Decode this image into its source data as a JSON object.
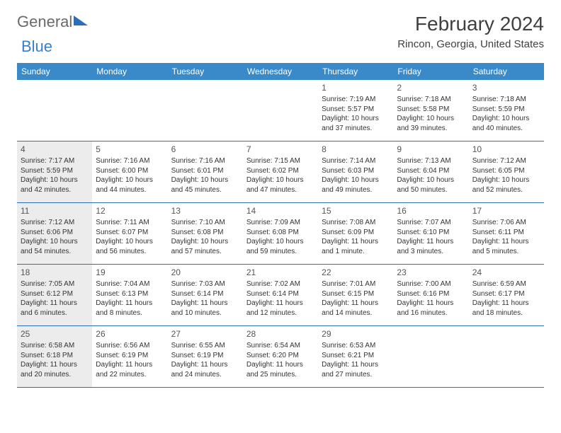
{
  "logo": {
    "word1": "General",
    "word2": "Blue"
  },
  "header": {
    "month_title": "February 2024",
    "location": "Rincon, Georgia, United States"
  },
  "colors": {
    "header_bar": "#3a8ac9",
    "rule": "#2d6fb5",
    "shade": "#ececec",
    "text": "#333333",
    "title": "#404040"
  },
  "day_names": [
    "Sunday",
    "Monday",
    "Tuesday",
    "Wednesday",
    "Thursday",
    "Friday",
    "Saturday"
  ],
  "weeks": [
    [
      {
        "blank": true
      },
      {
        "blank": true
      },
      {
        "blank": true
      },
      {
        "blank": true
      },
      {
        "day": "1",
        "sunrise": "Sunrise: 7:19 AM",
        "sunset": "Sunset: 5:57 PM",
        "dl1": "Daylight: 10 hours",
        "dl2": "and 37 minutes."
      },
      {
        "day": "2",
        "sunrise": "Sunrise: 7:18 AM",
        "sunset": "Sunset: 5:58 PM",
        "dl1": "Daylight: 10 hours",
        "dl2": "and 39 minutes."
      },
      {
        "day": "3",
        "sunrise": "Sunrise: 7:18 AM",
        "sunset": "Sunset: 5:59 PM",
        "dl1": "Daylight: 10 hours",
        "dl2": "and 40 minutes."
      }
    ],
    [
      {
        "day": "4",
        "shaded": true,
        "sunrise": "Sunrise: 7:17 AM",
        "sunset": "Sunset: 5:59 PM",
        "dl1": "Daylight: 10 hours",
        "dl2": "and 42 minutes."
      },
      {
        "day": "5",
        "sunrise": "Sunrise: 7:16 AM",
        "sunset": "Sunset: 6:00 PM",
        "dl1": "Daylight: 10 hours",
        "dl2": "and 44 minutes."
      },
      {
        "day": "6",
        "sunrise": "Sunrise: 7:16 AM",
        "sunset": "Sunset: 6:01 PM",
        "dl1": "Daylight: 10 hours",
        "dl2": "and 45 minutes."
      },
      {
        "day": "7",
        "sunrise": "Sunrise: 7:15 AM",
        "sunset": "Sunset: 6:02 PM",
        "dl1": "Daylight: 10 hours",
        "dl2": "and 47 minutes."
      },
      {
        "day": "8",
        "sunrise": "Sunrise: 7:14 AM",
        "sunset": "Sunset: 6:03 PM",
        "dl1": "Daylight: 10 hours",
        "dl2": "and 49 minutes."
      },
      {
        "day": "9",
        "sunrise": "Sunrise: 7:13 AM",
        "sunset": "Sunset: 6:04 PM",
        "dl1": "Daylight: 10 hours",
        "dl2": "and 50 minutes."
      },
      {
        "day": "10",
        "sunrise": "Sunrise: 7:12 AM",
        "sunset": "Sunset: 6:05 PM",
        "dl1": "Daylight: 10 hours",
        "dl2": "and 52 minutes."
      }
    ],
    [
      {
        "day": "11",
        "shaded": true,
        "sunrise": "Sunrise: 7:12 AM",
        "sunset": "Sunset: 6:06 PM",
        "dl1": "Daylight: 10 hours",
        "dl2": "and 54 minutes."
      },
      {
        "day": "12",
        "sunrise": "Sunrise: 7:11 AM",
        "sunset": "Sunset: 6:07 PM",
        "dl1": "Daylight: 10 hours",
        "dl2": "and 56 minutes."
      },
      {
        "day": "13",
        "sunrise": "Sunrise: 7:10 AM",
        "sunset": "Sunset: 6:08 PM",
        "dl1": "Daylight: 10 hours",
        "dl2": "and 57 minutes."
      },
      {
        "day": "14",
        "sunrise": "Sunrise: 7:09 AM",
        "sunset": "Sunset: 6:08 PM",
        "dl1": "Daylight: 10 hours",
        "dl2": "and 59 minutes."
      },
      {
        "day": "15",
        "sunrise": "Sunrise: 7:08 AM",
        "sunset": "Sunset: 6:09 PM",
        "dl1": "Daylight: 11 hours",
        "dl2": "and 1 minute."
      },
      {
        "day": "16",
        "sunrise": "Sunrise: 7:07 AM",
        "sunset": "Sunset: 6:10 PM",
        "dl1": "Daylight: 11 hours",
        "dl2": "and 3 minutes."
      },
      {
        "day": "17",
        "sunrise": "Sunrise: 7:06 AM",
        "sunset": "Sunset: 6:11 PM",
        "dl1": "Daylight: 11 hours",
        "dl2": "and 5 minutes."
      }
    ],
    [
      {
        "day": "18",
        "shaded": true,
        "sunrise": "Sunrise: 7:05 AM",
        "sunset": "Sunset: 6:12 PM",
        "dl1": "Daylight: 11 hours",
        "dl2": "and 6 minutes."
      },
      {
        "day": "19",
        "sunrise": "Sunrise: 7:04 AM",
        "sunset": "Sunset: 6:13 PM",
        "dl1": "Daylight: 11 hours",
        "dl2": "and 8 minutes."
      },
      {
        "day": "20",
        "sunrise": "Sunrise: 7:03 AM",
        "sunset": "Sunset: 6:14 PM",
        "dl1": "Daylight: 11 hours",
        "dl2": "and 10 minutes."
      },
      {
        "day": "21",
        "sunrise": "Sunrise: 7:02 AM",
        "sunset": "Sunset: 6:14 PM",
        "dl1": "Daylight: 11 hours",
        "dl2": "and 12 minutes."
      },
      {
        "day": "22",
        "sunrise": "Sunrise: 7:01 AM",
        "sunset": "Sunset: 6:15 PM",
        "dl1": "Daylight: 11 hours",
        "dl2": "and 14 minutes."
      },
      {
        "day": "23",
        "sunrise": "Sunrise: 7:00 AM",
        "sunset": "Sunset: 6:16 PM",
        "dl1": "Daylight: 11 hours",
        "dl2": "and 16 minutes."
      },
      {
        "day": "24",
        "sunrise": "Sunrise: 6:59 AM",
        "sunset": "Sunset: 6:17 PM",
        "dl1": "Daylight: 11 hours",
        "dl2": "and 18 minutes."
      }
    ],
    [
      {
        "day": "25",
        "shaded": true,
        "sunrise": "Sunrise: 6:58 AM",
        "sunset": "Sunset: 6:18 PM",
        "dl1": "Daylight: 11 hours",
        "dl2": "and 20 minutes."
      },
      {
        "day": "26",
        "sunrise": "Sunrise: 6:56 AM",
        "sunset": "Sunset: 6:19 PM",
        "dl1": "Daylight: 11 hours",
        "dl2": "and 22 minutes."
      },
      {
        "day": "27",
        "sunrise": "Sunrise: 6:55 AM",
        "sunset": "Sunset: 6:19 PM",
        "dl1": "Daylight: 11 hours",
        "dl2": "and 24 minutes."
      },
      {
        "day": "28",
        "sunrise": "Sunrise: 6:54 AM",
        "sunset": "Sunset: 6:20 PM",
        "dl1": "Daylight: 11 hours",
        "dl2": "and 25 minutes."
      },
      {
        "day": "29",
        "sunrise": "Sunrise: 6:53 AM",
        "sunset": "Sunset: 6:21 PM",
        "dl1": "Daylight: 11 hours",
        "dl2": "and 27 minutes."
      },
      {
        "blank": true
      },
      {
        "blank": true
      }
    ]
  ]
}
